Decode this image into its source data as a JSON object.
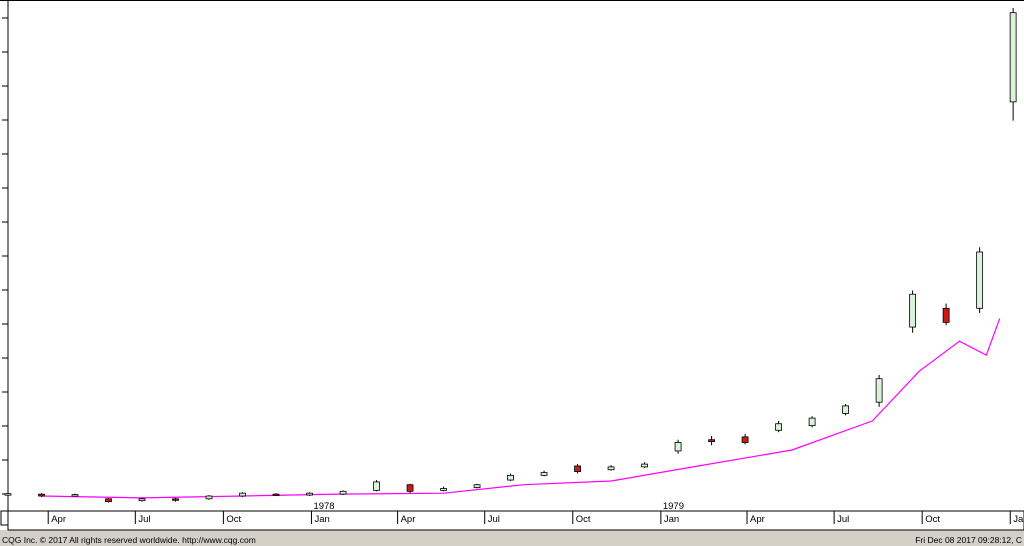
{
  "footer": {
    "copyright": "CQG Inc. © 2017 All rights reserved worldwide. http://www.cqg.com",
    "timestamp": "Fri Dec 08 2017 09:28:12, C"
  },
  "colors": {
    "up_fill": "#d9f2d9",
    "down_fill": "#cc1a1a",
    "outline": "#000000",
    "ma_line": "#ff00ff",
    "background": "#ffffff",
    "axis_panel": "#ffffff"
  },
  "chart_data": {
    "type": "candlestick",
    "title": "",
    "xlabel": "",
    "ylabel": "",
    "x_tick_labels": [
      "Apr",
      "Jul",
      "Oct",
      "Jan",
      "Apr",
      "Jul",
      "Oct",
      "Jan",
      "Apr",
      "Jul",
      "Oct",
      "Jan"
    ],
    "x_tick_dates": [
      "1977-04",
      "1977-07",
      "1977-10",
      "1978-01",
      "1978-04",
      "1978-07",
      "1978-10",
      "1979-01",
      "1979-04",
      "1979-07",
      "1979-10",
      "1980-01"
    ],
    "year_labels": [
      {
        "label": "1978",
        "date": "1978-01"
      },
      {
        "label": "1979",
        "date": "1979-01"
      }
    ],
    "x_range": [
      "1977-02-18",
      "1980-01-07"
    ],
    "y_range": [
      0,
      520
    ],
    "y_axis_side": "left",
    "y_tick_labels_visible": false,
    "grid": false,
    "weeks": [
      {
        "date": "1977-02-18",
        "open": 1.0,
        "close": 2.5,
        "high": 3.5,
        "low": 0.5
      },
      {
        "date": "1977-03-25",
        "open": 2.0,
        "close": 0.0,
        "high": 3.0,
        "low": -1.0
      },
      {
        "date": "1977-04-29",
        "open": 0.5,
        "close": 1.5,
        "high": 2.5,
        "low": -0.5
      },
      {
        "date": "1977-06-03",
        "open": -3.0,
        "close": -6.0,
        "high": -2.0,
        "low": -7.0
      },
      {
        "date": "1977-07-08",
        "open": -5.0,
        "close": -3.0,
        "high": -2.0,
        "low": -6.0
      },
      {
        "date": "1977-08-12",
        "open": -3.0,
        "close": -4.0,
        "high": -2.0,
        "low": -6.0
      },
      {
        "date": "1977-09-16",
        "open": -3.0,
        "close": 0.0,
        "high": 1.0,
        "low": -4.0
      },
      {
        "date": "1977-10-21",
        "open": 0.0,
        "close": 3.0,
        "high": 4.0,
        "low": -1.0
      },
      {
        "date": "1977-11-25",
        "open": 2.0,
        "close": 1.0,
        "high": 3.0,
        "low": 0.0
      },
      {
        "date": "1977-12-30",
        "open": 1.0,
        "close": 3.0,
        "high": 4.0,
        "low": 0.0
      },
      {
        "date": "1978-02-03",
        "open": 2.0,
        "close": 5.0,
        "high": 6.0,
        "low": 1.0
      },
      {
        "date": "1978-03-10",
        "open": 6.0,
        "close": 15.0,
        "high": 17.0,
        "low": 5.0
      },
      {
        "date": "1978-04-14",
        "open": 12.0,
        "close": 5.0,
        "high": 13.0,
        "low": 3.0
      },
      {
        "date": "1978-05-19",
        "open": 6.0,
        "close": 8.0,
        "high": 10.0,
        "low": 5.0
      },
      {
        "date": "1978-06-23",
        "open": 9.0,
        "close": 12.0,
        "high": 13.0,
        "low": 8.0
      },
      {
        "date": "1978-07-28",
        "open": 17.0,
        "close": 22.0,
        "high": 24.0,
        "low": 16.0
      },
      {
        "date": "1978-09-01",
        "open": 22.0,
        "close": 25.0,
        "high": 27.0,
        "low": 21.0
      },
      {
        "date": "1978-10-06",
        "open": 32.0,
        "close": 26.0,
        "high": 34.0,
        "low": 24.0
      },
      {
        "date": "1978-11-10",
        "open": 28.0,
        "close": 31.0,
        "high": 33.0,
        "low": 27.0
      },
      {
        "date": "1978-12-15",
        "open": 31.0,
        "close": 34.0,
        "high": 36.0,
        "low": 30.0
      },
      {
        "date": "1979-01-19",
        "open": 48.0,
        "close": 57.0,
        "high": 60.0,
        "low": 45.0
      },
      {
        "date": "1979-02-23",
        "open": 60.0,
        "close": 58.0,
        "high": 64.0,
        "low": 54.0
      },
      {
        "date": "1979-03-30",
        "open": 63.0,
        "close": 57.0,
        "high": 66.0,
        "low": 55.0
      },
      {
        "date": "1979-05-04",
        "open": 70.0,
        "close": 77.0,
        "high": 80.0,
        "low": 68.0
      },
      {
        "date": "1979-06-08",
        "open": 75.0,
        "close": 83.0,
        "high": 85.0,
        "low": 73.0
      },
      {
        "date": "1979-07-13",
        "open": 88.0,
        "close": 96.0,
        "high": 98.0,
        "low": 86.0
      },
      {
        "date": "1979-08-17",
        "open": 100.0,
        "close": 125.0,
        "high": 129.0,
        "low": 95.0
      },
      {
        "date": "1979-09-21",
        "open": 180.0,
        "close": 215.0,
        "high": 219.0,
        "low": 174.0
      },
      {
        "date": "1979-10-26",
        "open": 200.0,
        "close": 185.0,
        "high": 205.0,
        "low": 182.0
      },
      {
        "date": "1979-11-30",
        "open": 200.0,
        "close": 260.0,
        "high": 265.0,
        "low": 195.0
      },
      {
        "date": "1980-01-04",
        "open": 420.0,
        "close": 515.0,
        "high": 520.0,
        "low": 400.0
      }
    ],
    "moving_average": [
      {
        "date": "1977-03-25",
        "value": 0.0
      },
      {
        "date": "1977-07-08",
        "value": -2.0
      },
      {
        "date": "1977-10-21",
        "value": 0.0
      },
      {
        "date": "1978-01-27",
        "value": 2.0
      },
      {
        "date": "1978-05-19",
        "value": 3.0
      },
      {
        "date": "1978-08-11",
        "value": 12.0
      },
      {
        "date": "1978-11-10",
        "value": 16.0
      },
      {
        "date": "1979-02-09",
        "value": 32.0
      },
      {
        "date": "1979-05-18",
        "value": 49.0
      },
      {
        "date": "1979-08-10",
        "value": 80.0
      },
      {
        "date": "1979-09-28",
        "value": 133.0
      },
      {
        "date": "1979-11-09",
        "value": 165.0
      },
      {
        "date": "1979-12-07",
        "value": 150.0
      },
      {
        "date": "1979-12-21",
        "value": 189.0
      }
    ]
  }
}
